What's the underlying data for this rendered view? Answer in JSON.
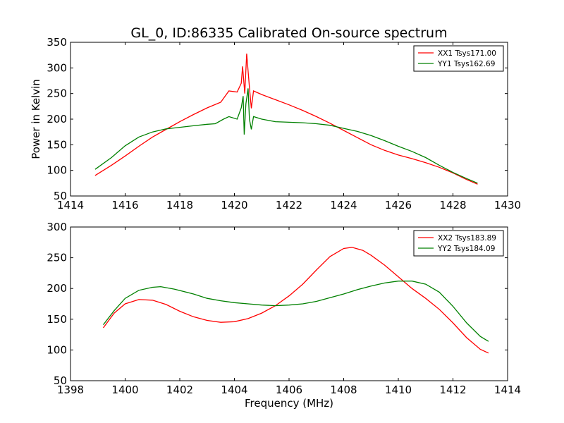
{
  "chart_data": [
    {
      "type": "line",
      "title": "GL_0, ID:86335 Calibrated On-source spectrum",
      "xlabel": "",
      "ylabel": "Power in Kelvin",
      "xlim": [
        1414,
        1430
      ],
      "ylim": [
        50,
        350
      ],
      "xticks": [
        1414,
        1416,
        1418,
        1420,
        1422,
        1424,
        1426,
        1428,
        1430
      ],
      "yticks": [
        50,
        100,
        150,
        200,
        250,
        300,
        350
      ],
      "legend_position": "top-right",
      "series": [
        {
          "name": "XX1 Tsys171.00",
          "color": "#ff0000",
          "points": [
            [
              1414.9,
              90
            ],
            [
              1415.5,
              110
            ],
            [
              1416,
              128
            ],
            [
              1416.5,
              147
            ],
            [
              1417,
              165
            ],
            [
              1417.5,
              180
            ],
            [
              1418,
              195
            ],
            [
              1418.5,
              209
            ],
            [
              1419,
              222
            ],
            [
              1419.5,
              233
            ],
            [
              1419.8,
              255
            ],
            [
              1420.1,
              253
            ],
            [
              1420.25,
              270
            ],
            [
              1420.3,
              303
            ],
            [
              1420.38,
              250
            ],
            [
              1420.45,
              328
            ],
            [
              1420.55,
              262
            ],
            [
              1420.62,
              221
            ],
            [
              1420.7,
              255
            ],
            [
              1421,
              248
            ],
            [
              1421.5,
              238
            ],
            [
              1422,
              228
            ],
            [
              1422.5,
              217
            ],
            [
              1423,
              205
            ],
            [
              1423.5,
              192
            ],
            [
              1424,
              178
            ],
            [
              1424.5,
              164
            ],
            [
              1425,
              150
            ],
            [
              1425.5,
              139
            ],
            [
              1426,
              130
            ],
            [
              1426.5,
              123
            ],
            [
              1427,
              115
            ],
            [
              1427.5,
              106
            ],
            [
              1428,
              95
            ],
            [
              1428.5,
              82
            ],
            [
              1428.9,
              73
            ]
          ]
        },
        {
          "name": "YY1 Tsys162.69",
          "color": "#008000",
          "points": [
            [
              1414.9,
              102
            ],
            [
              1415.5,
              125
            ],
            [
              1416,
              148
            ],
            [
              1416.5,
              165
            ],
            [
              1417,
              175
            ],
            [
              1417.5,
              181
            ],
            [
              1418,
              184
            ],
            [
              1418.5,
              187
            ],
            [
              1419,
              190
            ],
            [
              1419.3,
              191
            ],
            [
              1419.6,
              200
            ],
            [
              1419.8,
              205
            ],
            [
              1420.1,
              200
            ],
            [
              1420.25,
              222
            ],
            [
              1420.32,
              245
            ],
            [
              1420.36,
              170
            ],
            [
              1420.42,
              230
            ],
            [
              1420.5,
              260
            ],
            [
              1420.55,
              200
            ],
            [
              1420.62,
              180
            ],
            [
              1420.7,
              205
            ],
            [
              1421,
              200
            ],
            [
              1421.5,
              195
            ],
            [
              1422,
              194
            ],
            [
              1422.5,
              193
            ],
            [
              1423,
              191
            ],
            [
              1423.5,
              188
            ],
            [
              1424,
              182
            ],
            [
              1424.5,
              176
            ],
            [
              1425,
              168
            ],
            [
              1425.5,
              158
            ],
            [
              1426,
              147
            ],
            [
              1426.5,
              137
            ],
            [
              1427,
              125
            ],
            [
              1427.5,
              110
            ],
            [
              1428,
              96
            ],
            [
              1428.5,
              84
            ],
            [
              1428.9,
              75
            ]
          ]
        }
      ]
    },
    {
      "type": "line",
      "title": "",
      "xlabel": "Frequency (MHz)",
      "ylabel": "",
      "xlim": [
        1398,
        1414
      ],
      "ylim": [
        50,
        300
      ],
      "xticks": [
        1398,
        1400,
        1402,
        1404,
        1406,
        1408,
        1410,
        1412,
        1414
      ],
      "yticks": [
        50,
        100,
        150,
        200,
        250,
        300
      ],
      "legend_position": "top-right",
      "series": [
        {
          "name": "XX2 Tsys183.89",
          "color": "#ff0000",
          "points": [
            [
              1399.2,
              136
            ],
            [
              1399.6,
              160
            ],
            [
              1400,
              175
            ],
            [
              1400.5,
              182
            ],
            [
              1401,
              181
            ],
            [
              1401.5,
              174
            ],
            [
              1402,
              163
            ],
            [
              1402.5,
              154
            ],
            [
              1403,
              148
            ],
            [
              1403.5,
              145
            ],
            [
              1404,
              146
            ],
            [
              1404.5,
              151
            ],
            [
              1405,
              160
            ],
            [
              1405.5,
              172
            ],
            [
              1406,
              188
            ],
            [
              1406.5,
              207
            ],
            [
              1407,
              230
            ],
            [
              1407.5,
              252
            ],
            [
              1408,
              265
            ],
            [
              1408.3,
              267
            ],
            [
              1408.7,
              262
            ],
            [
              1409,
              254
            ],
            [
              1409.5,
              238
            ],
            [
              1410,
              219
            ],
            [
              1410.5,
              200
            ],
            [
              1411,
              184
            ],
            [
              1411.5,
              166
            ],
            [
              1412,
              144
            ],
            [
              1412.5,
              120
            ],
            [
              1413,
              101
            ],
            [
              1413.3,
              95
            ]
          ]
        },
        {
          "name": "YY2 Tsys184.09",
          "color": "#008000",
          "points": [
            [
              1399.2,
              141
            ],
            [
              1399.6,
              164
            ],
            [
              1400,
              184
            ],
            [
              1400.5,
              197
            ],
            [
              1401,
              202
            ],
            [
              1401.3,
              203
            ],
            [
              1401.8,
              199
            ],
            [
              1402.5,
              191
            ],
            [
              1403,
              184
            ],
            [
              1403.5,
              180
            ],
            [
              1404,
              177
            ],
            [
              1404.5,
              175
            ],
            [
              1405,
              173
            ],
            [
              1405.5,
              172
            ],
            [
              1406,
              173
            ],
            [
              1406.5,
              175
            ],
            [
              1407,
              179
            ],
            [
              1407.5,
              185
            ],
            [
              1408,
              191
            ],
            [
              1408.5,
              198
            ],
            [
              1409,
              204
            ],
            [
              1409.5,
              209
            ],
            [
              1410,
              212
            ],
            [
              1410.5,
              212
            ],
            [
              1411,
              207
            ],
            [
              1411.5,
              194
            ],
            [
              1412,
              171
            ],
            [
              1412.5,
              144
            ],
            [
              1413,
              122
            ],
            [
              1413.3,
              114
            ]
          ]
        }
      ]
    }
  ]
}
